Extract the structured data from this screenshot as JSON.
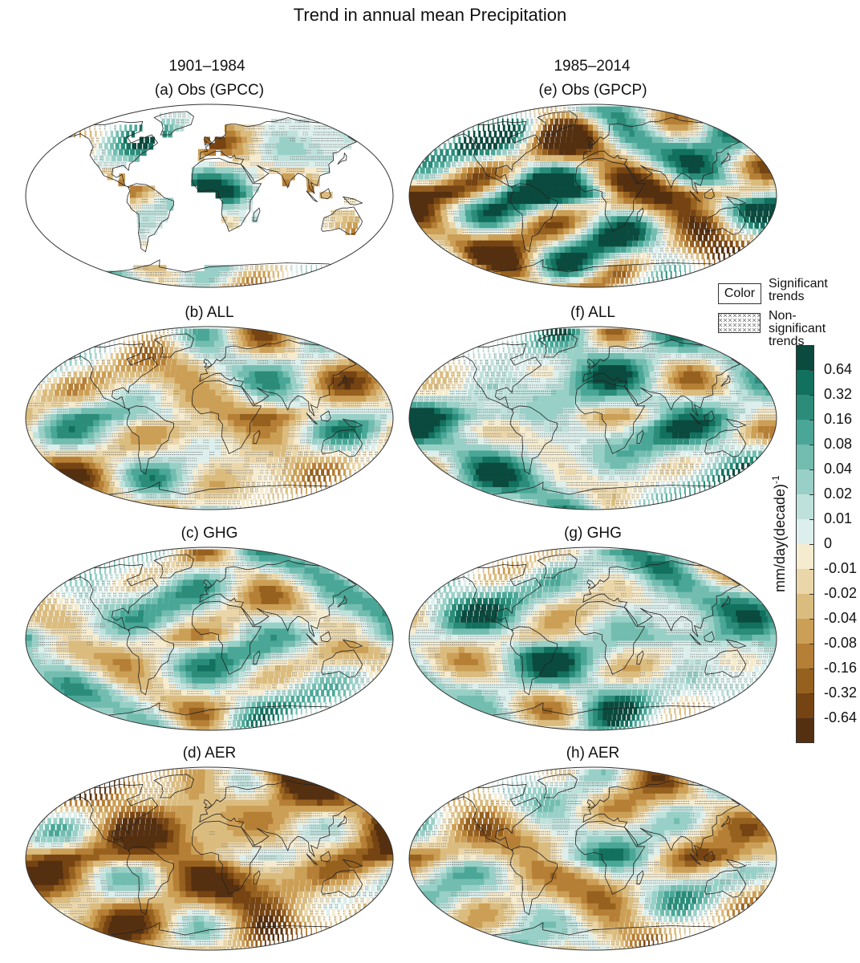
{
  "figure": {
    "title": "Trend in annual mean Precipitation",
    "periods": [
      "1901–1984",
      "1985–2014"
    ]
  },
  "panels": [
    {
      "id": "a",
      "label": "(a) Obs (GPCC)",
      "col": 0,
      "row": 0,
      "style": "obs-land",
      "bias": 0.05
    },
    {
      "id": "e",
      "label": "(e) Obs (GPCP)",
      "col": 1,
      "row": 0,
      "style": "obs-full",
      "bias": 0.0
    },
    {
      "id": "b",
      "label": "(b) ALL",
      "col": 0,
      "row": 1,
      "style": "model",
      "bias": -0.1
    },
    {
      "id": "f",
      "label": "(f) ALL",
      "col": 1,
      "row": 1,
      "style": "model",
      "bias": 0.25
    },
    {
      "id": "c",
      "label": "(c) GHG",
      "col": 0,
      "row": 2,
      "style": "model",
      "bias": 0.1
    },
    {
      "id": "g",
      "label": "(g) GHG",
      "col": 1,
      "row": 2,
      "style": "model",
      "bias": 0.2
    },
    {
      "id": "d",
      "label": "(d) AER",
      "col": 0,
      "row": 3,
      "style": "model",
      "bias": -0.45
    },
    {
      "id": "h",
      "label": "(h) AER",
      "col": 1,
      "row": 3,
      "style": "model",
      "bias": -0.1
    }
  ],
  "legend": {
    "color_label": "Color",
    "significant": "Significant trends",
    "significant_line1": "Significant",
    "significant_line2": "trends",
    "nonsig_line1": "Non-significant",
    "nonsig_line2": "trends"
  },
  "colorbar": {
    "unit_main": "mm/day(decade)",
    "unit_sup": "-1",
    "ticks": [
      "0.64",
      "0.32",
      "0.16",
      "0.08",
      "0.04",
      "0.02",
      "0.01",
      "0",
      "-0.01",
      "-0.02",
      "-0.04",
      "-0.08",
      "-0.16",
      "-0.32",
      "-0.64"
    ],
    "colors": [
      "#0b4a3e",
      "#12705e",
      "#2a8c79",
      "#4aa797",
      "#73bdb0",
      "#98d0c7",
      "#bfe1dc",
      "#dcefec",
      "#f5ebcf",
      "#ead6a9",
      "#dbbc7f",
      "#cc9f56",
      "#b67f36",
      "#96601f",
      "#764413",
      "#553010"
    ]
  }
}
